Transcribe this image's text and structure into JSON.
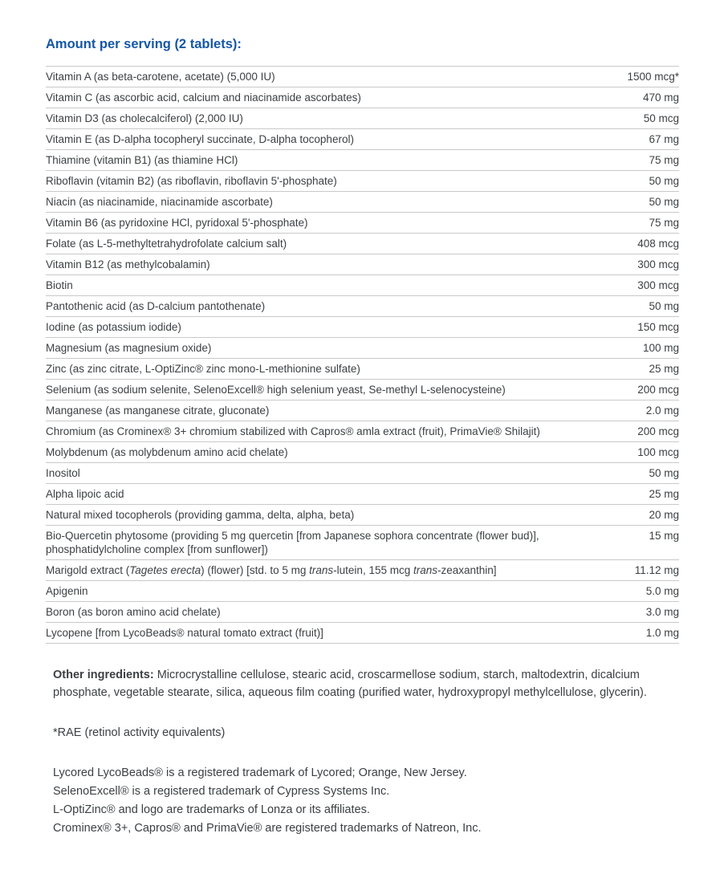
{
  "title": "Amount per serving (2 tablets):",
  "colors": {
    "title_blue": "#1557a5",
    "text": "#3c4043",
    "rule": "#c9c9c9"
  },
  "table": {
    "rows": [
      {
        "name": "Vitamin A (as beta-carotene, acetate) (5,000 IU)",
        "amount": "1500 mcg*"
      },
      {
        "name": "Vitamin C (as ascorbic acid, calcium and niacinamide ascorbates)",
        "amount": "470 mg"
      },
      {
        "name": "Vitamin D3 (as cholecalciferol) (2,000 IU)",
        "amount": "50 mcg"
      },
      {
        "name": "Vitamin E (as D-alpha tocopheryl succinate, D-alpha tocopherol)",
        "amount": "67 mg"
      },
      {
        "name": "Thiamine (vitamin B1) (as thiamine HCl)",
        "amount": "75 mg"
      },
      {
        "name": "Riboflavin (vitamin B2) (as riboflavin, riboflavin 5'-phosphate)",
        "amount": "50 mg"
      },
      {
        "name": "Niacin (as niacinamide, niacinamide ascorbate)",
        "amount": "50 mg"
      },
      {
        "name": "Vitamin B6 (as pyridoxine HCl, pyridoxal 5'-phosphate)",
        "amount": "75 mg"
      },
      {
        "name": "Folate (as L-5-methyltetrahydrofolate calcium salt)",
        "amount": "408 mcg"
      },
      {
        "name": "Vitamin B12 (as methylcobalamin)",
        "amount": "300 mcg"
      },
      {
        "name": "Biotin",
        "amount": "300 mcg"
      },
      {
        "name": "Pantothenic acid (as D-calcium pantothenate)",
        "amount": "50 mg"
      },
      {
        "name": "Iodine (as potassium iodide)",
        "amount": "150 mcg"
      },
      {
        "name": "Magnesium (as magnesium oxide)",
        "amount": "100 mg"
      },
      {
        "name": "Zinc (as zinc citrate, L-OptiZinc® zinc mono-L-methionine sulfate)",
        "amount": "25 mg"
      },
      {
        "name": "Selenium (as sodium selenite, SelenoExcell® high selenium yeast, Se-methyl L-selenocysteine)",
        "amount": "200 mcg"
      },
      {
        "name": "Manganese (as manganese citrate, gluconate)",
        "amount": "2.0 mg"
      },
      {
        "name": "Chromium (as Crominex® 3+ chromium stabilized with Capros® amla extract (fruit), PrimaVie® Shilajit)",
        "amount": "200 mcg"
      },
      {
        "name": "Molybdenum (as molybdenum amino acid chelate)",
        "amount": "100 mcg"
      },
      {
        "name": "Inositol",
        "amount": "50 mg"
      },
      {
        "name": "Alpha lipoic acid",
        "amount": "25 mg"
      },
      {
        "name": "Natural mixed tocopherols (providing gamma, delta, alpha, beta)",
        "amount": "20 mg"
      },
      {
        "name": "Bio-Quercetin phytosome (providing 5 mg quercetin [from Japanese sophora concentrate (flower bud)], phosphatidylcholine complex [from sunflower])",
        "amount": "15 mg"
      },
      {
        "name": "Marigold extract (Tagetes erecta) (flower) [std. to 5 mg trans-lutein, 155 mcg trans-zeaxanthin]",
        "name_segments": [
          {
            "t": "Marigold extract (",
            "i": false
          },
          {
            "t": "Tagetes erecta",
            "i": true
          },
          {
            "t": ") (flower) [std. to 5 mg ",
            "i": false
          },
          {
            "t": "trans",
            "i": true
          },
          {
            "t": "-lutein, 155 mcg ",
            "i": false
          },
          {
            "t": "trans",
            "i": true
          },
          {
            "t": "-zeaxanthin]",
            "i": false
          }
        ],
        "amount": "11.12 mg"
      },
      {
        "name": "Apigenin",
        "amount": "5.0 mg"
      },
      {
        "name": "Boron (as boron amino acid chelate)",
        "amount": "3.0 mg"
      },
      {
        "name": "Lycopene [from LycoBeads® natural tomato extract (fruit)]",
        "amount": "1.0 mg"
      }
    ]
  },
  "other_ingredients": {
    "label": "Other ingredients:",
    "text": " Microcrystalline cellulose, stearic acid, croscarmellose sodium, starch, maltodextrin, dicalcium phosphate, vegetable stearate, silica, aqueous film coating (purified water, hydroxypropyl methylcellulose, glycerin)."
  },
  "rae_note": "*RAE (retinol activity equivalents)",
  "trademarks": [
    "Lycored LycoBeads® is a registered trademark of Lycored; Orange, New Jersey.",
    "SelenoExcell® is a registered trademark of Cypress Systems Inc.",
    "L-OptiZinc® and logo are trademarks of Lonza or its affiliates.",
    "Crominex® 3+, Capros® and PrimaVie® are registered trademarks of Natreon, Inc."
  ]
}
